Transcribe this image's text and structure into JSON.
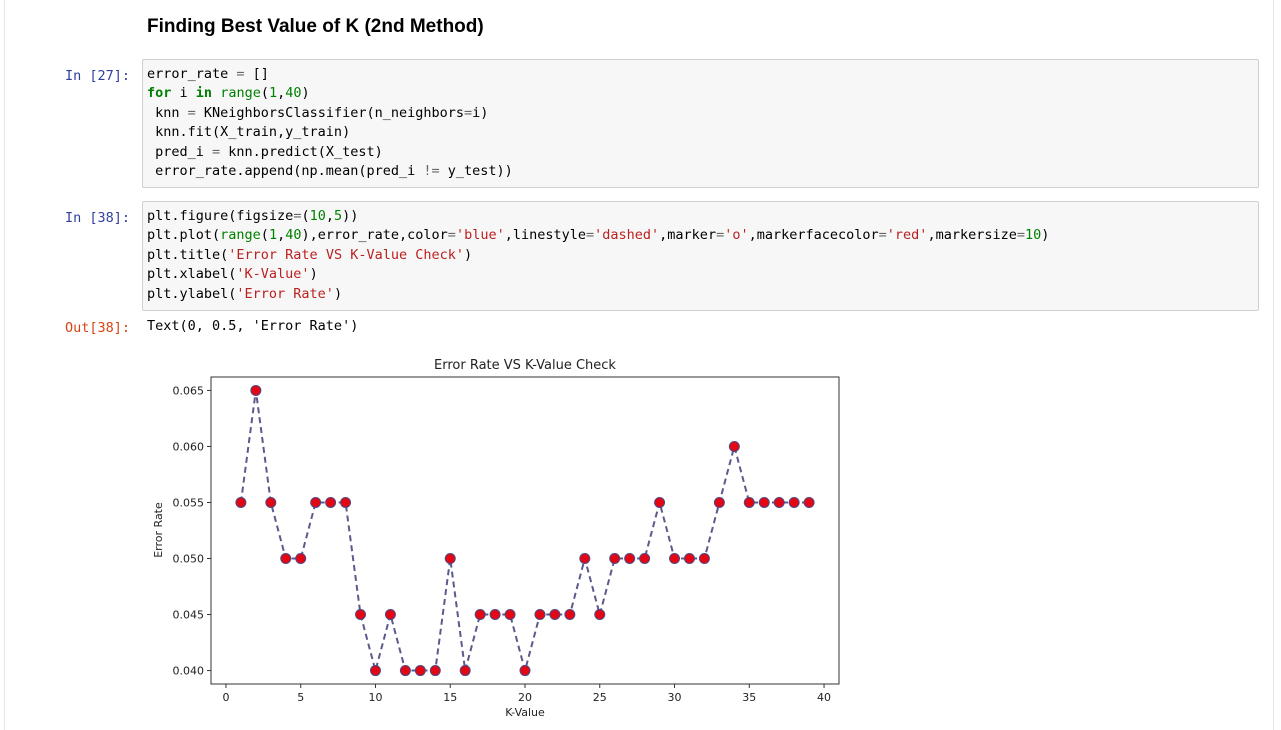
{
  "markdown": {
    "heading": "Finding Best Value of K (2nd Method)"
  },
  "cell1": {
    "prompt": "In [27]:",
    "lines": [
      "error_rate = []",
      "for i in range(1,40):",
      " knn = KNeighborsClassifier(n_neighbors=i)",
      " knn.fit(X_train,y_train)",
      " pred_i = knn.predict(X_test)",
      " error_rate.append(np.mean(pred_i != y_test))"
    ]
  },
  "cell2": {
    "prompt": "In [38]:",
    "lines": [
      "plt.figure(figsize=(10,5))",
      "plt.plot(range(1,40),error_rate,color='blue',linestyle='dashed',marker='o',markerfacecolor='red',markersize=10)",
      "plt.title('Error Rate VS K-Value Check')",
      "plt.xlabel('K-Value')",
      "plt.ylabel('Error Rate')"
    ],
    "out_prompt": "Out[38]:",
    "out_text": "Text(0, 0.5, 'Error Rate')"
  },
  "chart_data": {
    "type": "line",
    "title": "Error Rate VS K-Value Check",
    "xlabel": "K-Value",
    "ylabel": "Error Rate",
    "xlim": [
      -1,
      41
    ],
    "ylim": [
      0.0388,
      0.0662
    ],
    "xticks": [
      0,
      5,
      10,
      15,
      20,
      25,
      30,
      35,
      40
    ],
    "yticks": [
      0.04,
      0.045,
      0.05,
      0.055,
      0.06,
      0.065
    ],
    "ytick_labels": [
      "0.040",
      "0.045",
      "0.050",
      "0.055",
      "0.060",
      "0.065"
    ],
    "line_color": "#5a5a8c",
    "marker_face": "#e30613",
    "marker_edge": "#4a4a8a",
    "linestyle": "dashed",
    "x": [
      1,
      2,
      3,
      4,
      5,
      6,
      7,
      8,
      9,
      10,
      11,
      12,
      13,
      14,
      15,
      16,
      17,
      18,
      19,
      20,
      21,
      22,
      23,
      24,
      25,
      26,
      27,
      28,
      29,
      30,
      31,
      32,
      33,
      34,
      35,
      36,
      37,
      38,
      39
    ],
    "y": [
      0.055,
      0.065,
      0.055,
      0.05,
      0.05,
      0.055,
      0.055,
      0.055,
      0.045,
      0.04,
      0.045,
      0.04,
      0.04,
      0.04,
      0.05,
      0.04,
      0.045,
      0.045,
      0.045,
      0.04,
      0.045,
      0.045,
      0.045,
      0.05,
      0.045,
      0.05,
      0.05,
      0.05,
      0.055,
      0.05,
      0.05,
      0.05,
      0.055,
      0.06,
      0.055,
      0.055,
      0.055,
      0.055,
      0.055
    ]
  }
}
